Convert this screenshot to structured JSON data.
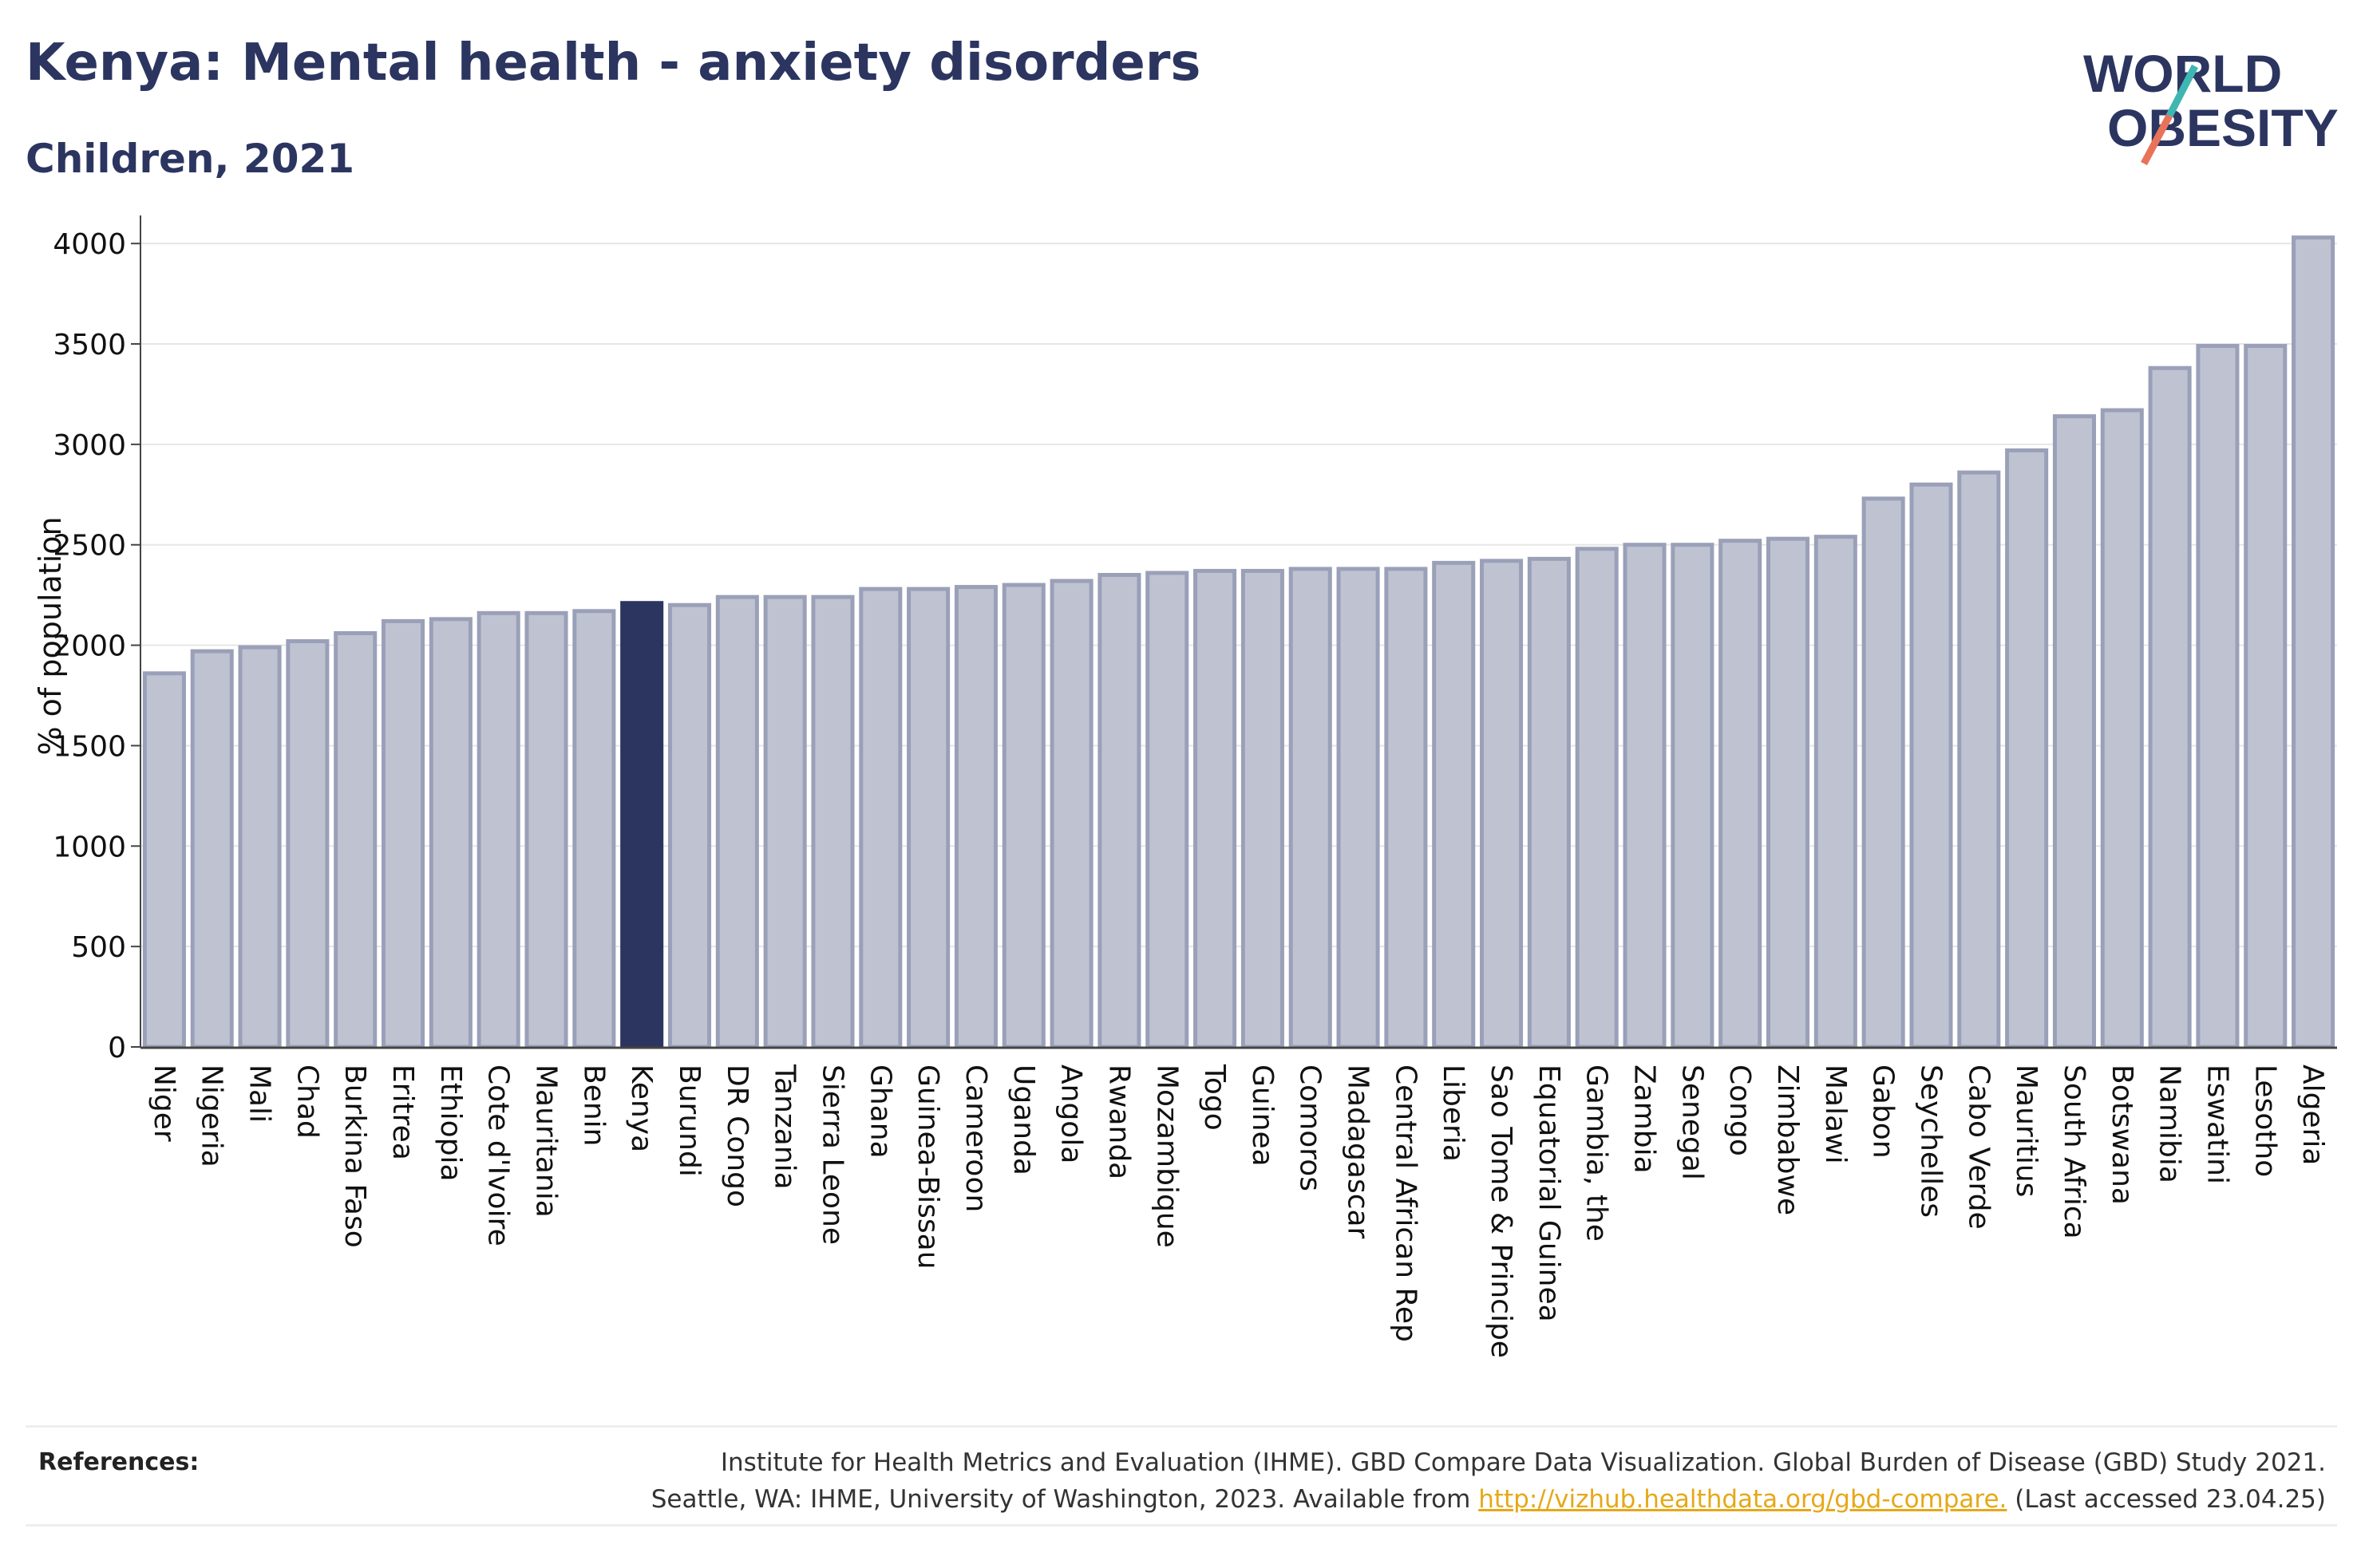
{
  "title": "Kenya: Mental health - anxiety disorders",
  "subtitle": "Children, 2021",
  "logo": {
    "line1": "WORLD",
    "line2": "OBESITY",
    "slash_colors": [
      "#3fb6b2",
      "#e8735a"
    ]
  },
  "colors": {
    "bar": "#bfc3d1",
    "bar_stroke": "#9aa0b8",
    "highlight": "#2b3560",
    "grid": "#e6e6e6",
    "axis": "#444444",
    "link": "#e6a817"
  },
  "chart_data": {
    "type": "bar",
    "title": "Kenya: Mental health - anxiety disorders",
    "subtitle": "Children, 2021",
    "ylabel": "% of population",
    "xlabel": "",
    "ylim": [
      0,
      4100
    ],
    "yticks": [
      0,
      500,
      1000,
      1500,
      2000,
      2500,
      3000,
      3500,
      4000
    ],
    "grid": true,
    "highlight": "Kenya",
    "categories": [
      "Niger",
      "Nigeria",
      "Mali",
      "Chad",
      "Burkina Faso",
      "Eritrea",
      "Ethiopia",
      "Cote d'Ivoire",
      "Mauritania",
      "Benin",
      "Kenya",
      "Burundi",
      "DR Congo",
      "Tanzania",
      "Sierra Leone",
      "Ghana",
      "Guinea-Bissau",
      "Cameroon",
      "Uganda",
      "Angola",
      "Rwanda",
      "Mozambique",
      "Togo",
      "Guinea",
      "Comoros",
      "Madagascar",
      "Central African Rep",
      "Liberia",
      "Sao Tome & Principe",
      "Equatorial Guinea",
      "Gambia, the",
      "Zambia",
      "Senegal",
      "Congo",
      "Zimbabwe",
      "Malawi",
      "Gabon",
      "Seychelles",
      "Cabo Verde",
      "Mauritius",
      "South Africa",
      "Botswana",
      "Namibia",
      "Eswatini",
      "Lesotho",
      "Algeria"
    ],
    "values": [
      1860,
      1970,
      1990,
      2020,
      2060,
      2120,
      2130,
      2160,
      2160,
      2170,
      2210,
      2200,
      2240,
      2240,
      2240,
      2280,
      2280,
      2290,
      2300,
      2320,
      2350,
      2360,
      2370,
      2370,
      2380,
      2380,
      2380,
      2410,
      2420,
      2430,
      2480,
      2500,
      2500,
      2520,
      2530,
      2540,
      2730,
      2800,
      2860,
      2970,
      3140,
      3170,
      3380,
      3490,
      3490,
      4030
    ]
  },
  "references": {
    "label": "References:",
    "line1": "Institute for Health Metrics and Evaluation (IHME). GBD Compare Data Visualization. Global Burden of Disease (GBD) Study 2021.",
    "line2_prefix": "Seattle, WA: IHME, University of Washington, 2023. Available from ",
    "link": "http://vizhub.healthdata.org/gbd-compare.",
    "line2_suffix": " (Last accessed 23.04.25)"
  }
}
